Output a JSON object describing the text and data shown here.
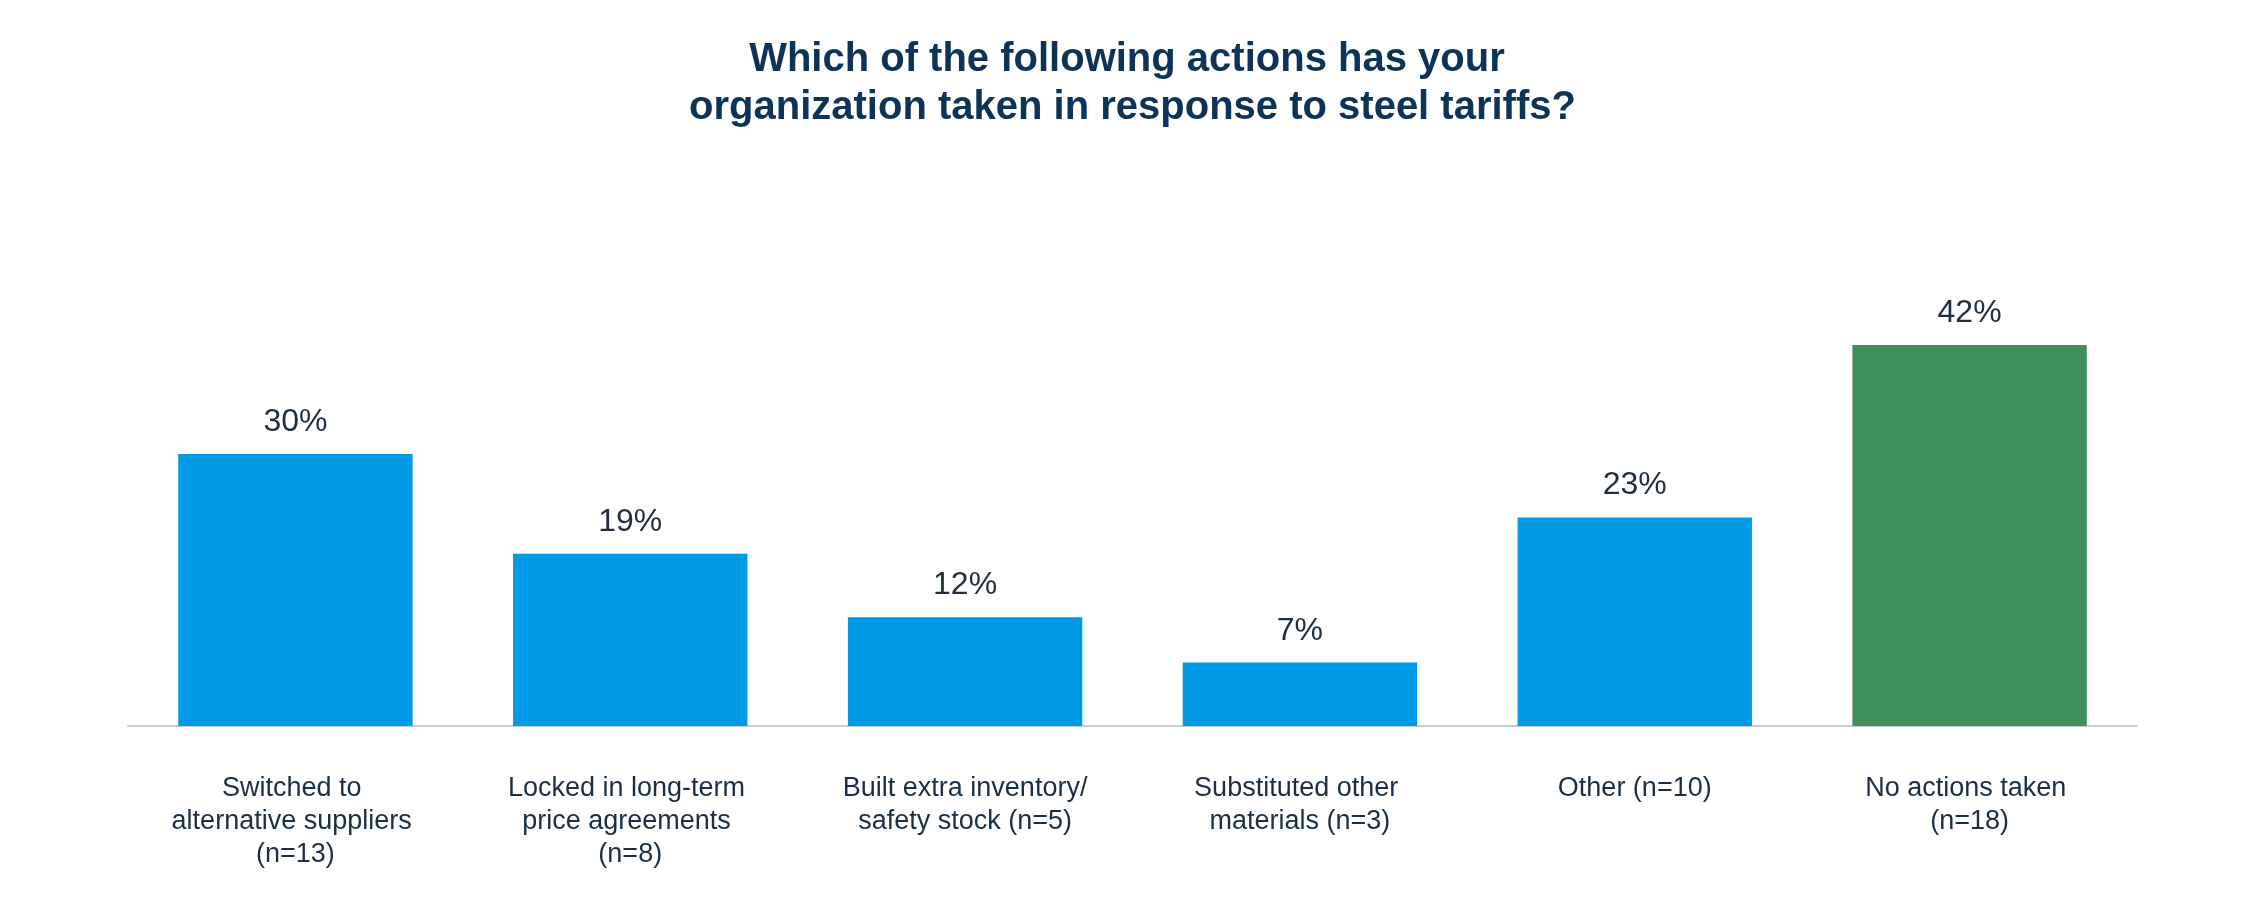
{
  "chart_data": {
    "type": "bar",
    "title": "Which of the following actions has your organization taken in response to steel tariffs?",
    "categories": [
      "Switched to alternative suppliers (n=13)",
      "Locked in long-term price agreements (n=8)",
      "Built extra inventory/safety stock (n=5)",
      "Substituted other materials (n=3)",
      "Other (n=10)",
      "No actions taken (n=18)"
    ],
    "values": [
      30,
      19,
      12,
      7,
      23,
      42
    ],
    "colors": [
      "#0099e6",
      "#0099e6",
      "#0099e6",
      "#0099e6",
      "#0099e6",
      "#3f8f5c"
    ],
    "value_labels": [
      "30%",
      "19%",
      "12%",
      "7%",
      "23%",
      "42%"
    ]
  }
}
